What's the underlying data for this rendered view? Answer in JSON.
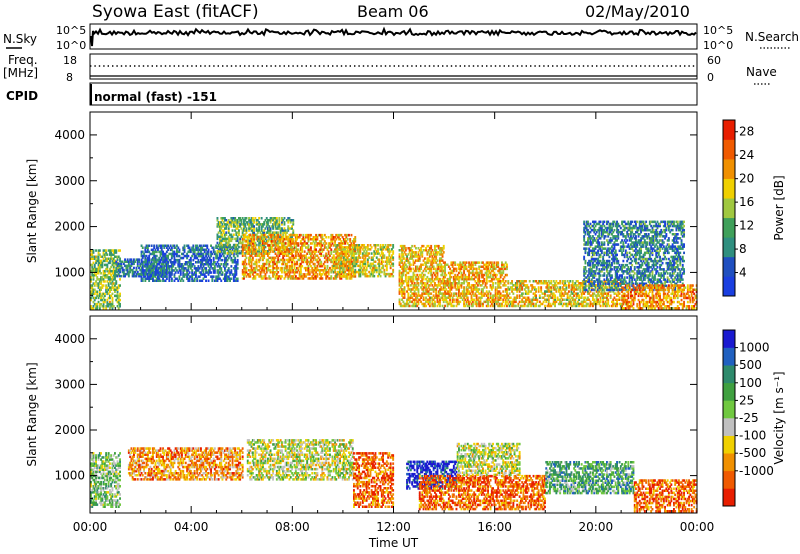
{
  "header": {
    "station": "Syowa East (fitACF)",
    "beam": "Beam 06",
    "date": "02/May/2010"
  },
  "top_panel": {
    "left_label_1": "N.Sky",
    "left_label_2": "Freq.",
    "left_label_3": "[MHz]",
    "cpid_label": "CPID",
    "right_label_1": "N.Search",
    "right_label_2": "Nave",
    "nsky_ticks": [
      "10^5",
      "10^0"
    ],
    "freq_ticks": [
      "18",
      "8"
    ],
    "nave_ticks": [
      "60",
      "0"
    ],
    "cpid_text": "normal (fast) -151"
  },
  "chart_data": [
    {
      "type": "heatmap",
      "quantity": "Power",
      "ylabel": "Slant Range [km]",
      "y_ticks": [
        "1000",
        "2000",
        "3000",
        "4000"
      ],
      "ylim": [
        180,
        4500
      ],
      "x_ticks": [
        "00:00",
        "04:00",
        "08:00",
        "12:00",
        "16:00",
        "20:00",
        "00:00"
      ],
      "xlim_hours": [
        0,
        24
      ],
      "colorbar_label": "Power [dB]",
      "colorbar_ticks": [
        "4",
        "8",
        "12",
        "16",
        "20",
        "24",
        "28"
      ],
      "colorbar_range": [
        0,
        30
      ],
      "colors": [
        "#1a3fe0",
        "#1f4fc0",
        "#2f8f7f",
        "#3fa05a",
        "#a0c840",
        "#f0d000",
        "#f09000",
        "#f05a00",
        "#e81e00"
      ],
      "regions": [
        {
          "t0": 0.0,
          "t1": 1.2,
          "r0": 200,
          "r1": 1500,
          "level": 14
        },
        {
          "t0": 1.0,
          "t1": 3.0,
          "r0": 900,
          "r1": 1300,
          "level": 6
        },
        {
          "t0": 2.0,
          "t1": 5.8,
          "r0": 800,
          "r1": 1600,
          "level": 5
        },
        {
          "t0": 5.0,
          "t1": 8.0,
          "r0": 1400,
          "r1": 2200,
          "level": 12
        },
        {
          "t0": 6.0,
          "t1": 10.5,
          "r0": 850,
          "r1": 1800,
          "level": 22
        },
        {
          "t0": 9.6,
          "t1": 12.0,
          "r0": 900,
          "r1": 1600,
          "level": 18
        },
        {
          "t0": 12.2,
          "t1": 14.0,
          "r0": 250,
          "r1": 1600,
          "level": 20
        },
        {
          "t0": 14.0,
          "t1": 16.5,
          "r0": 250,
          "r1": 1200,
          "level": 21
        },
        {
          "t0": 16.5,
          "t1": 21.0,
          "r0": 250,
          "r1": 800,
          "level": 19
        },
        {
          "t0": 19.5,
          "t1": 23.5,
          "r0": 600,
          "r1": 2100,
          "level": 7
        },
        {
          "t0": 21.0,
          "t1": 24.0,
          "r0": 200,
          "r1": 700,
          "level": 23
        }
      ]
    },
    {
      "type": "heatmap",
      "quantity": "Velocity",
      "ylabel": "Slant Range [km]",
      "y_ticks": [
        "1000",
        "2000",
        "3000",
        "4000"
      ],
      "ylim": [
        180,
        4500
      ],
      "x_ticks": [
        "00:00",
        "04:00",
        "08:00",
        "12:00",
        "16:00",
        "20:00",
        "00:00"
      ],
      "xlim_hours": [
        0,
        24
      ],
      "xlabel": "Time UT",
      "colorbar_label": "Velocity [m s⁻¹]",
      "colorbar_ticks": [
        "1000",
        "500",
        "100",
        "25",
        "-25",
        "-100",
        "-500",
        "-1000"
      ],
      "colors": [
        "#1a1ad0",
        "#2060c0",
        "#2e8a6c",
        "#3fa040",
        "#70c840",
        "#c0c0c0",
        "#f0d000",
        "#f09000",
        "#f05a00",
        "#e81e00"
      ],
      "regions": [
        {
          "t0": 0.0,
          "t1": 1.2,
          "r0": 300,
          "r1": 1500,
          "level": 4
        },
        {
          "t0": 1.5,
          "t1": 6.0,
          "r0": 900,
          "r1": 1600,
          "level": 7
        },
        {
          "t0": 6.2,
          "t1": 10.4,
          "r0": 900,
          "r1": 1800,
          "level": 5
        },
        {
          "t0": 10.4,
          "t1": 12.0,
          "r0": 300,
          "r1": 1500,
          "level": 8
        },
        {
          "t0": 12.5,
          "t1": 14.5,
          "r0": 700,
          "r1": 1300,
          "level": 0
        },
        {
          "t0": 13.0,
          "t1": 18.0,
          "r0": 250,
          "r1": 1000,
          "level": 8
        },
        {
          "t0": 14.5,
          "t1": 17.0,
          "r0": 1000,
          "r1": 1700,
          "level": 5
        },
        {
          "t0": 18.0,
          "t1": 21.5,
          "r0": 600,
          "r1": 1300,
          "level": 3
        },
        {
          "t0": 21.5,
          "t1": 24.0,
          "r0": 200,
          "r1": 900,
          "level": 8
        }
      ]
    }
  ]
}
